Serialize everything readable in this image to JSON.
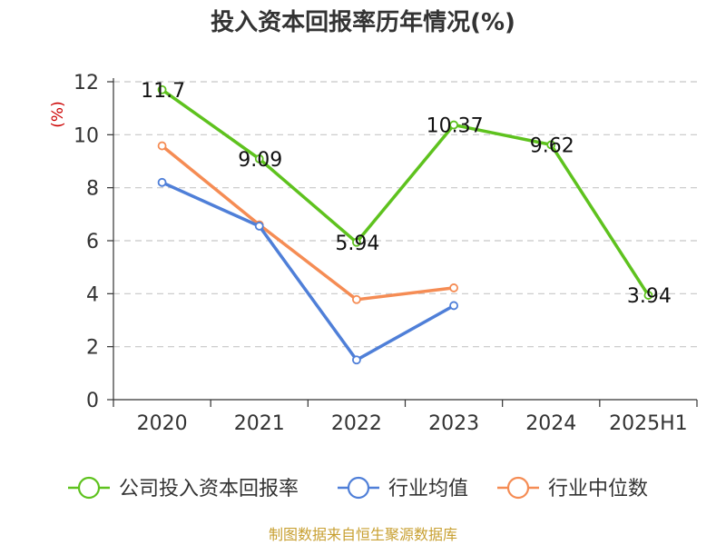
{
  "chart_data": {
    "type": "line",
    "title": "投入资本回报率历年情况(%)",
    "ylabel": "(%)",
    "xlabel": "",
    "categories": [
      "2020",
      "2021",
      "2022",
      "2023",
      "2024",
      "2025H1"
    ],
    "ylim": [
      0,
      12
    ],
    "yticks": [
      0,
      2,
      4,
      6,
      8,
      10,
      12
    ],
    "grid": true,
    "legend_position": "bottom",
    "series": [
      {
        "name": "公司投入资本回报率",
        "color": "#5ec21e",
        "values": [
          11.7,
          9.09,
          5.94,
          10.37,
          9.62,
          3.94
        ],
        "labels": [
          "11.7",
          "9.09",
          "5.94",
          "10.37",
          "9.62",
          "3.94"
        ]
      },
      {
        "name": "行业均值",
        "color": "#4f7fd8",
        "values": [
          8.2,
          6.55,
          1.5,
          3.55,
          null,
          null
        ]
      },
      {
        "name": "行业中位数",
        "color": "#f58c54",
        "values": [
          9.58,
          6.6,
          3.78,
          4.22,
          null,
          null
        ]
      }
    ],
    "source": "制图数据来自恒生聚源数据库"
  }
}
